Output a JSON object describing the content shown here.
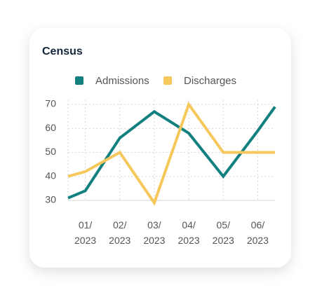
{
  "chart_data": {
    "type": "line",
    "title": "Census",
    "x": [
      0.5,
      1,
      2,
      3,
      4,
      5,
      6,
      6.5
    ],
    "xlim": [
      0.5,
      6.5
    ],
    "xticks": [
      {
        "value": 1,
        "label": "01/2023"
      },
      {
        "value": 2,
        "label": "02/2023"
      },
      {
        "value": 3,
        "label": "03/2023"
      },
      {
        "value": 4,
        "label": "04/2023"
      },
      {
        "value": 5,
        "label": "05/2023"
      },
      {
        "value": 6,
        "label": "06/2023"
      }
    ],
    "ylim": [
      30,
      70
    ],
    "yticks": [
      30,
      40,
      50,
      60,
      70
    ],
    "grid": true,
    "legend": "top",
    "series": [
      {
        "name": "Admissions",
        "color": "#138080",
        "values": [
          31,
          34,
          56,
          67,
          58,
          40,
          59,
          69
        ]
      },
      {
        "name": "Discharges",
        "color": "#f6c85c",
        "values": [
          40,
          42,
          50,
          29,
          70,
          50,
          50,
          50
        ]
      }
    ]
  }
}
